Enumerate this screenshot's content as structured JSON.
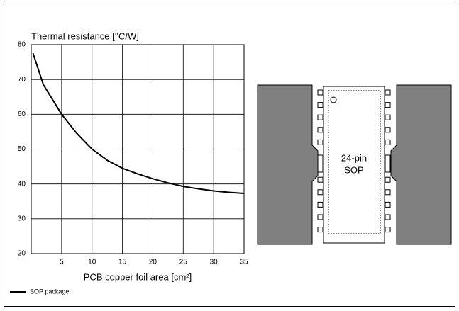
{
  "chart_data": {
    "type": "line",
    "title": "Thermal resistance   [°C/W]",
    "x_label": "PCB copper foil area  [cm²]",
    "x": [
      0.3,
      2,
      5,
      7.5,
      10,
      12.5,
      15,
      17.5,
      20,
      22.5,
      25,
      27.5,
      30,
      32.5,
      35
    ],
    "series": [
      {
        "name": "SOP package",
        "color": "#000000",
        "values": [
          77.5,
          68.5,
          60,
          54.5,
          50,
          46.8,
          44.5,
          42.9,
          41.5,
          40.3,
          39.3,
          38.6,
          38.0,
          37.6,
          37.3
        ]
      }
    ],
    "xlim": [
      0,
      35
    ],
    "xticks": [
      5,
      10,
      15,
      20,
      25,
      30,
      35
    ],
    "ylim": [
      20,
      80
    ],
    "yticks": [
      20,
      30,
      40,
      50,
      60,
      70,
      80
    ],
    "grid": true
  },
  "diagram": {
    "label": [
      "24-pin",
      "SOP"
    ]
  }
}
